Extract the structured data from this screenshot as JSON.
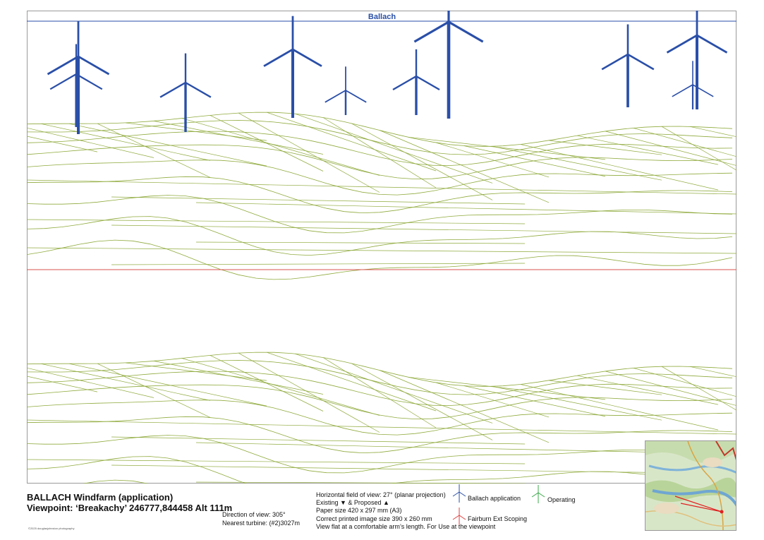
{
  "header": {
    "windfarm_label": "Ballach"
  },
  "footer": {
    "title": "BALLACH Windfarm (application)",
    "viewpoint": "Viewpoint: ‘Breakachy’ 246777,844458 Alt 111m",
    "direction": "Direction of view: 305°",
    "nearest_turbine": "Nearest turbine: (#2)3027m",
    "copyright": "©2025 douglasjohnston photography",
    "info_lines": [
      "Horizontal field of view: 27° (planar projection)",
      "Existing ▼ & Proposed ▲",
      "Paper size 420 x 297 mm (A3)",
      "Correct printed image size 390 x 260 mm",
      "View flat at a comfortable arm’s length. For Use at the viewpoint"
    ]
  },
  "legend": [
    {
      "label": "Ballach application",
      "color": "#2a4fa8",
      "icon": "turbine-icon"
    },
    {
      "label": "Operating",
      "color": "#3aa84a",
      "icon": "turbine-icon"
    },
    {
      "label": "Fairburn Ext Scoping",
      "color": "#e04040",
      "icon": "turbine-icon"
    }
  ],
  "colors": {
    "turbine": "#2a4fa8",
    "wireframe": "#8faa3c",
    "divider": "#d9534f",
    "frame": "#9a9a9a"
  }
}
